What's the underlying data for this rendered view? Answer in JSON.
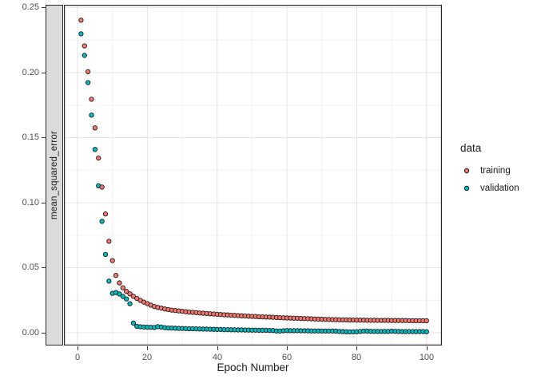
{
  "chart_data": {
    "type": "scatter",
    "title": "",
    "xlabel": "Epoch Number",
    "ylabel": "mean_squared_error",
    "facet_strip_label": "mean_squared_error",
    "grid": true,
    "xlim": [
      -3.9,
      104.4
    ],
    "ylim": [
      -0.0098,
      0.2521
    ],
    "x_tick_values": [
      0,
      20,
      40,
      60,
      80,
      100
    ],
    "x_tick_labels": [
      "0",
      "20",
      "40",
      "60",
      "80",
      "100"
    ],
    "x_minor_ticks": [
      10,
      30,
      50,
      70,
      90
    ],
    "y_tick_values": [
      0.25,
      0.2,
      0.15,
      0.1,
      0.05,
      0.0
    ],
    "y_tick_labels": [
      "0.25",
      "0.20",
      "0.15",
      "0.10",
      "0.05",
      "0.00"
    ],
    "y_minor_ticks": [
      0.225,
      0.175,
      0.125,
      0.075,
      0.025
    ],
    "legend": {
      "title": "data",
      "position": "right",
      "entries": [
        {
          "label": "training",
          "color": "#F8766D"
        },
        {
          "label": "validation",
          "color": "#00BFC4"
        }
      ]
    },
    "series": [
      {
        "name": "training",
        "color": "#F8766D",
        "x": [
          1,
          2,
          3,
          4,
          5,
          6,
          7,
          8,
          9,
          10,
          11,
          12,
          13,
          14,
          15,
          16,
          17,
          18,
          19,
          20,
          21,
          22,
          23,
          24,
          25,
          26,
          27,
          28,
          29,
          30,
          31,
          32,
          33,
          34,
          35,
          36,
          37,
          38,
          39,
          40,
          41,
          42,
          43,
          44,
          45,
          46,
          47,
          48,
          49,
          50,
          51,
          52,
          53,
          54,
          55,
          56,
          57,
          58,
          59,
          60,
          61,
          62,
          63,
          64,
          65,
          66,
          67,
          68,
          69,
          70,
          71,
          72,
          73,
          74,
          75,
          76,
          77,
          78,
          79,
          80,
          81,
          82,
          83,
          84,
          85,
          86,
          87,
          88,
          89,
          90,
          91,
          92,
          93,
          94,
          95,
          96,
          97,
          98,
          99,
          100
        ],
        "y": [
          0.2403,
          0.2205,
          0.2007,
          0.1795,
          0.1575,
          0.1343,
          0.112,
          0.0913,
          0.0703,
          0.0555,
          0.0441,
          0.0383,
          0.0346,
          0.0318,
          0.0299,
          0.028,
          0.0264,
          0.0249,
          0.0235,
          0.0224,
          0.0212,
          0.0202,
          0.0195,
          0.0189,
          0.0183,
          0.0178,
          0.0174,
          0.0171,
          0.0168,
          0.0165,
          0.0162,
          0.0159,
          0.0157,
          0.0155,
          0.0152,
          0.015,
          0.0148,
          0.0146,
          0.0144,
          0.0142,
          0.014,
          0.0138,
          0.0137,
          0.0135,
          0.0134,
          0.0132,
          0.013,
          0.0129,
          0.0127,
          0.0126,
          0.0125,
          0.0123,
          0.0122,
          0.0121,
          0.012,
          0.0119,
          0.0117,
          0.0116,
          0.0115,
          0.0114,
          0.0113,
          0.0112,
          0.0111,
          0.011,
          0.0109,
          0.0108,
          0.0107,
          0.0106,
          0.0105,
          0.0104,
          0.0103,
          0.0102,
          0.0101,
          0.0101,
          0.01,
          0.0099,
          0.0099,
          0.0098,
          0.0098,
          0.0097,
          0.0097,
          0.0097,
          0.0096,
          0.0096,
          0.0096,
          0.0095,
          0.0095,
          0.0095,
          0.0095,
          0.0094,
          0.0094,
          0.0094,
          0.0094,
          0.0094,
          0.0093,
          0.0093,
          0.0093,
          0.0093,
          0.0093,
          0.0092
        ]
      },
      {
        "name": "validation",
        "color": "#00BFC4",
        "x": [
          1,
          2,
          3,
          4,
          5,
          6,
          7,
          8,
          9,
          10,
          11,
          12,
          13,
          14,
          15,
          16,
          17,
          18,
          19,
          20,
          21,
          22,
          23,
          24,
          25,
          26,
          27,
          28,
          29,
          30,
          31,
          32,
          33,
          34,
          35,
          36,
          37,
          38,
          39,
          40,
          41,
          42,
          43,
          44,
          45,
          46,
          47,
          48,
          49,
          50,
          51,
          52,
          53,
          54,
          55,
          56,
          57,
          58,
          59,
          60,
          61,
          62,
          63,
          64,
          65,
          66,
          67,
          68,
          69,
          70,
          71,
          72,
          73,
          74,
          75,
          76,
          77,
          78,
          79,
          80,
          81,
          82,
          83,
          84,
          85,
          86,
          87,
          88,
          89,
          90,
          91,
          92,
          93,
          94,
          95,
          96,
          97,
          98,
          99,
          100
        ],
        "y": [
          0.2298,
          0.2132,
          0.1923,
          0.1673,
          0.1409,
          0.113,
          0.0856,
          0.0602,
          0.0397,
          0.0303,
          0.0309,
          0.0298,
          0.0279,
          0.026,
          0.0223,
          0.0074,
          0.005,
          0.0046,
          0.0044,
          0.0043,
          0.0042,
          0.0041,
          0.0047,
          0.0044,
          0.0039,
          0.0037,
          0.0036,
          0.0035,
          0.0034,
          0.0033,
          0.0032,
          0.0031,
          0.0031,
          0.003,
          0.0029,
          0.0028,
          0.0028,
          0.0027,
          0.0026,
          0.0025,
          0.0025,
          0.0024,
          0.0024,
          0.0023,
          0.0023,
          0.0022,
          0.0022,
          0.0021,
          0.0021,
          0.002,
          0.002,
          0.0019,
          0.0019,
          0.0019,
          0.0018,
          0.0018,
          0.0014,
          0.0013,
          0.0015,
          0.0017,
          0.0016,
          0.0016,
          0.0016,
          0.0015,
          0.0015,
          0.0015,
          0.0014,
          0.0014,
          0.0014,
          0.0013,
          0.0013,
          0.0013,
          0.0013,
          0.0012,
          0.001,
          0.0009,
          0.0008,
          0.0007,
          0.0007,
          0.0008,
          0.001,
          0.0013,
          0.0012,
          0.0011,
          0.001,
          0.001,
          0.001,
          0.001,
          0.001,
          0.0012,
          0.0011,
          0.001,
          0.0009,
          0.0009,
          0.0009,
          0.0009,
          0.0009,
          0.0009,
          0.0009,
          0.0008
        ]
      }
    ]
  }
}
